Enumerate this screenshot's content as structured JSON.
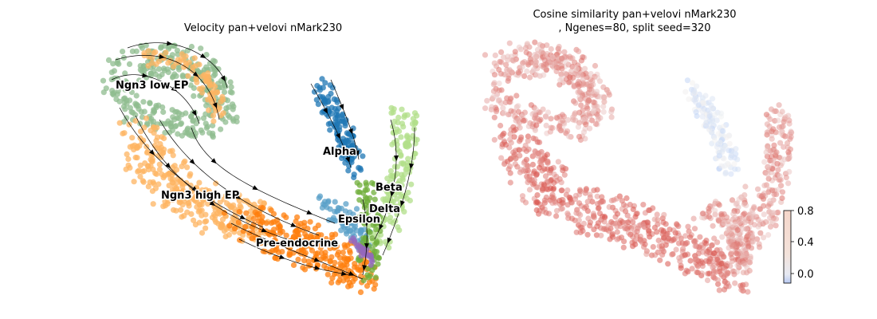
{
  "chart_data": [
    {
      "type": "scatter",
      "subtype": "umap-embedding-with-velocity-streamlines",
      "title": "Velocity pan+velovi nMark230",
      "axes_visible": false,
      "grid": false,
      "legend": "on-data",
      "colors": {
        "Ngn3 low EP": "#8fbc8f",
        "Ngn3 high EP": "#fdb462",
        "Pre-endocrine": "#ff7f0e",
        "Alpha": "#1f77b4",
        "Beta": "#b2df8a",
        "Delta": "#6fae3a",
        "Epsilon": "#5aa0c8",
        "Ductal": "#9467bd"
      },
      "clusters": [
        {
          "name": "Ngn3 low EP"
        },
        {
          "name": "Ngn3 high EP"
        },
        {
          "name": "Pre-endocrine"
        },
        {
          "name": "Alpha"
        },
        {
          "name": "Beta"
        },
        {
          "name": "Delta"
        },
        {
          "name": "Epsilon"
        }
      ]
    },
    {
      "type": "scatter",
      "subtype": "umap-embedding-colored-by-value",
      "title_line1": "Cosine similarity pan+velovi nMark230",
      "title_line2": ", Ngenes=80, split seed=320",
      "axes_visible": false,
      "grid": false,
      "colormap": "coolwarm",
      "colors": {
        "low": "#b8cff7",
        "mid": "#f2f2f2",
        "high": "#d6453d"
      },
      "colorbar": {
        "placement": "bottom-right",
        "ticks": [
          "0.0",
          "0.4",
          "0.8"
        ],
        "range": [
          -0.1,
          0.8
        ]
      }
    }
  ]
}
